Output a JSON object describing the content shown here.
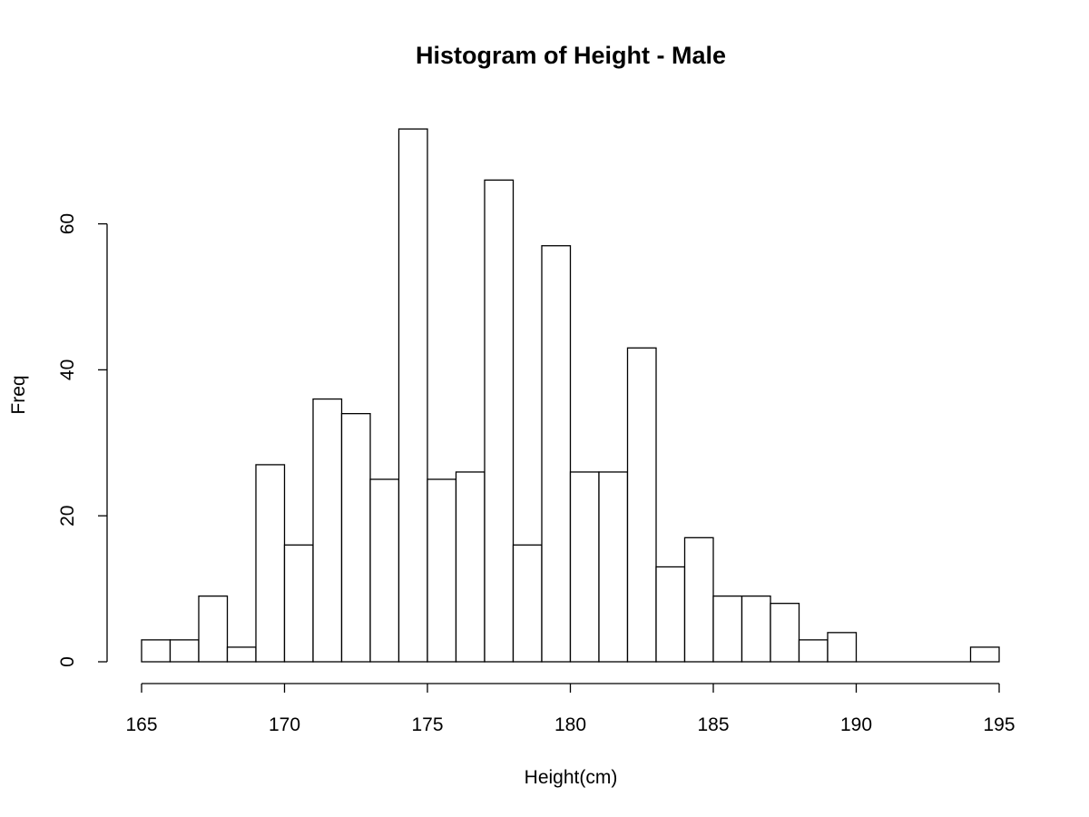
{
  "chart_data": {
    "type": "bar",
    "title": "Histogram of Height - Male",
    "xlabel": "Height(cm)",
    "ylabel": "Freq",
    "xlim": [
      165,
      195
    ],
    "ylim": [
      0,
      73
    ],
    "bin_width": 1,
    "bins": [
      {
        "start": 165,
        "end": 166,
        "count": 3
      },
      {
        "start": 166,
        "end": 167,
        "count": 3
      },
      {
        "start": 167,
        "end": 168,
        "count": 9
      },
      {
        "start": 168,
        "end": 169,
        "count": 2
      },
      {
        "start": 169,
        "end": 170,
        "count": 27
      },
      {
        "start": 170,
        "end": 171,
        "count": 16
      },
      {
        "start": 171,
        "end": 172,
        "count": 36
      },
      {
        "start": 172,
        "end": 173,
        "count": 34
      },
      {
        "start": 173,
        "end": 174,
        "count": 25
      },
      {
        "start": 174,
        "end": 175,
        "count": 73
      },
      {
        "start": 175,
        "end": 176,
        "count": 25
      },
      {
        "start": 176,
        "end": 177,
        "count": 26
      },
      {
        "start": 177,
        "end": 178,
        "count": 66
      },
      {
        "start": 178,
        "end": 179,
        "count": 16
      },
      {
        "start": 179,
        "end": 180,
        "count": 57
      },
      {
        "start": 180,
        "end": 181,
        "count": 26
      },
      {
        "start": 181,
        "end": 182,
        "count": 26
      },
      {
        "start": 182,
        "end": 183,
        "count": 43
      },
      {
        "start": 183,
        "end": 184,
        "count": 13
      },
      {
        "start": 184,
        "end": 185,
        "count": 17
      },
      {
        "start": 185,
        "end": 186,
        "count": 9
      },
      {
        "start": 186,
        "end": 187,
        "count": 9
      },
      {
        "start": 187,
        "end": 188,
        "count": 8
      },
      {
        "start": 188,
        "end": 189,
        "count": 3
      },
      {
        "start": 189,
        "end": 190,
        "count": 4
      },
      {
        "start": 190,
        "end": 191,
        "count": 0
      },
      {
        "start": 191,
        "end": 192,
        "count": 0
      },
      {
        "start": 192,
        "end": 193,
        "count": 0
      },
      {
        "start": 193,
        "end": 194,
        "count": 0
      },
      {
        "start": 194,
        "end": 195,
        "count": 2
      }
    ],
    "x_ticks": [
      "165",
      "170",
      "175",
      "180",
      "185",
      "190",
      "195"
    ],
    "y_ticks": [
      "0",
      "20",
      "40",
      "60"
    ],
    "grid": false,
    "legend": "none"
  }
}
